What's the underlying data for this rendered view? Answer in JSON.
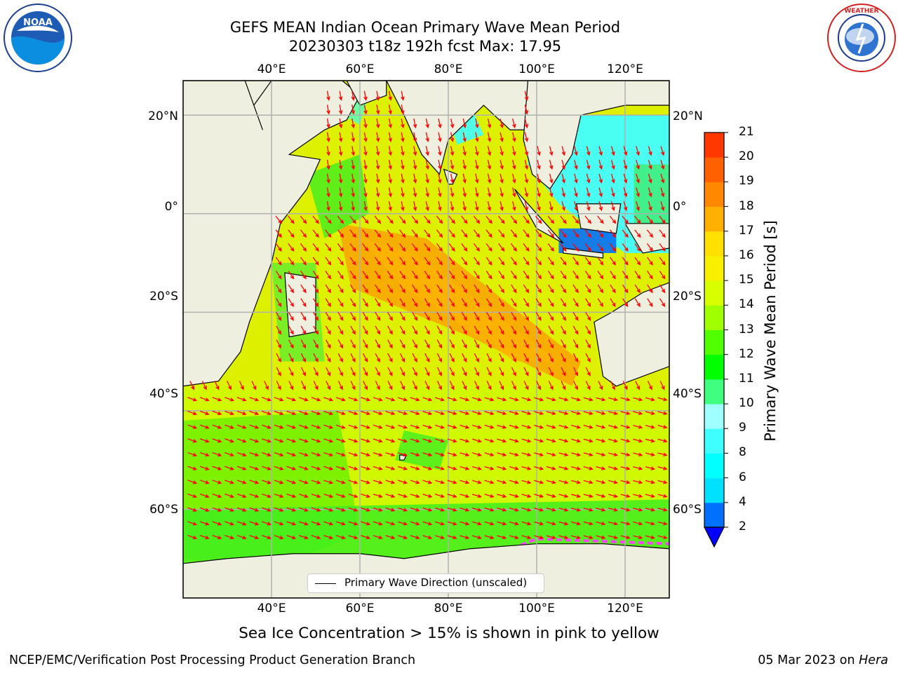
{
  "title_line1": "GEFS MEAN Indian Ocean Primary Wave Mean Period",
  "title_line2": "20230303 t18z 192h fcst   Max: 17.95",
  "logos": {
    "left": "noaa-logo",
    "right": "nws-logo"
  },
  "map": {
    "lon_range": [
      20,
      130
    ],
    "lat_range": [
      -78,
      27
    ],
    "lon_ticks": [
      "40°E",
      "60°E",
      "80°E",
      "100°E",
      "120°E"
    ],
    "lat_ticks": [
      "20°N",
      "0°",
      "20°S",
      "40°S",
      "60°S"
    ],
    "colors": {
      "land": "#efefdf",
      "arrow": "#ff0000",
      "grid": "#b0b0b0"
    }
  },
  "legend": {
    "label": "Primary Wave Direction (unscaled)"
  },
  "colorbar": {
    "title": "Primary Wave Mean Period [s]",
    "ticks": [
      "21",
      "20",
      "19",
      "18",
      "17",
      "16",
      "15",
      "14",
      "13",
      "12",
      "11",
      "10",
      "9",
      "8",
      "6",
      "4",
      "2"
    ],
    "colors": [
      "#0000ff",
      "#0070ff",
      "#00e0ff",
      "#00ffff",
      "#40ffff",
      "#a0ffff",
      "#40ff80",
      "#00ff00",
      "#50ff00",
      "#a0ff00",
      "#d8ff00",
      "#f8f000",
      "#ffe000",
      "#ffb000",
      "#ff8800",
      "#ff6000",
      "#ff3800",
      "#ff1000",
      "#ff0000"
    ]
  },
  "caption": "Sea Ice Concentration > 15% is shown in pink to yellow",
  "footer_left": "NCEP/EMC/Verification Post Processing Product Generation Branch",
  "footer_right_prefix": "05 Mar 2023 on ",
  "footer_right_host": "Hera"
}
